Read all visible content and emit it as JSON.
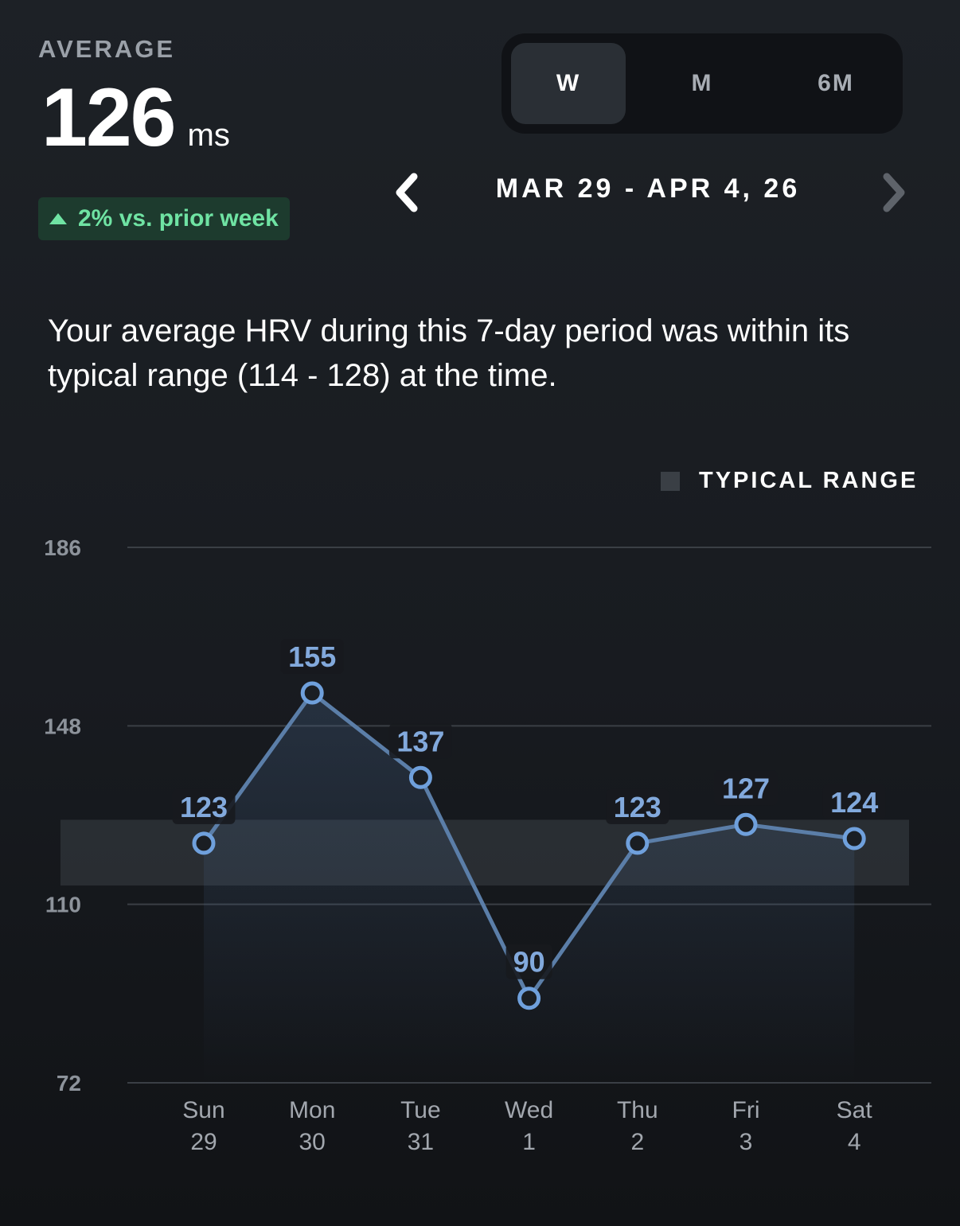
{
  "header": {
    "average_label": "AVERAGE",
    "average_value": "126",
    "average_unit": "ms",
    "change_text": "2% vs. prior week"
  },
  "period_tabs": [
    {
      "label": "W",
      "active": true
    },
    {
      "label": "M",
      "active": false
    },
    {
      "label": "6M",
      "active": false
    }
  ],
  "date_nav": {
    "range": "MAR 29 - APR 4, 26"
  },
  "summary": "Your average HRV during this 7-day period was within its typical range (114 - 128) at the time.",
  "legend": {
    "label": "TYPICAL RANGE"
  },
  "colors": {
    "accent": "#6fa0dc",
    "line": "#5b7ea8",
    "positive": "#6fe3a3",
    "typical_range": "#3a3f45"
  },
  "chart_data": {
    "type": "line",
    "categories": [
      "Sun 29",
      "Mon 30",
      "Tue 31",
      "Wed 1",
      "Thu 2",
      "Fri 3",
      "Sat 4"
    ],
    "day_names": [
      "Sun",
      "Mon",
      "Tue",
      "Wed",
      "Thu",
      "Fri",
      "Sat"
    ],
    "day_numbers": [
      "29",
      "30",
      "31",
      "1",
      "2",
      "3",
      "4"
    ],
    "values": [
      123,
      155,
      137,
      90,
      123,
      127,
      124
    ],
    "y_ticks": [
      186,
      148,
      110,
      72
    ],
    "ylim": [
      72,
      186
    ],
    "typical_range": [
      114,
      128
    ],
    "grid": true,
    "legend_position": "top-right"
  }
}
